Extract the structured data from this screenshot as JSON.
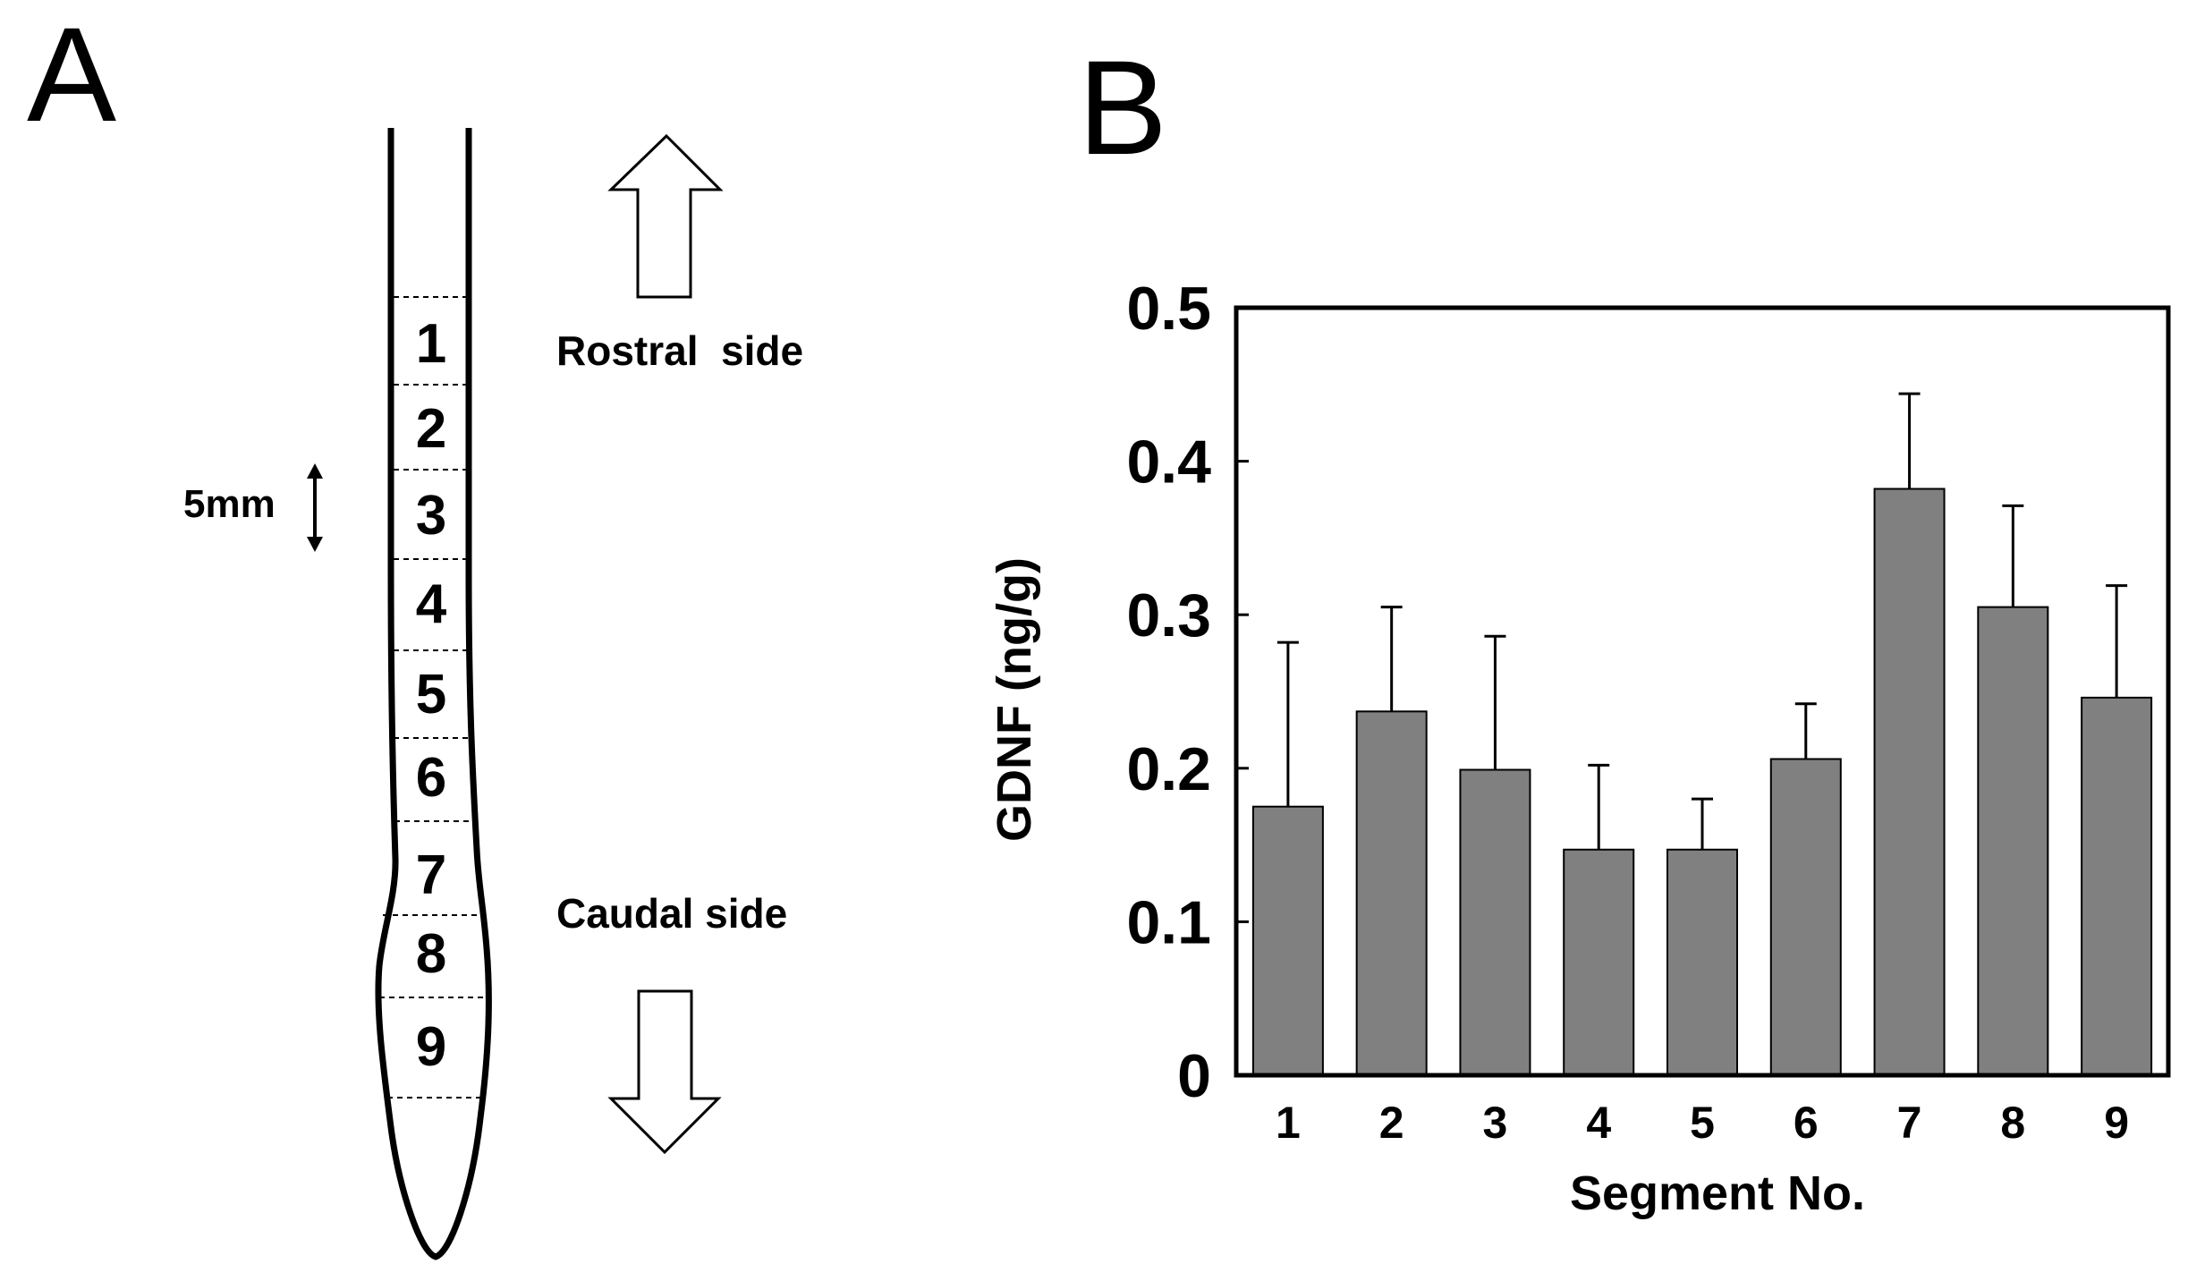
{
  "panels": {
    "a": {
      "label": "A",
      "segments": [
        "1",
        "2",
        "3",
        "4",
        "5",
        "6",
        "7",
        "8",
        "9"
      ],
      "rostral_label": "Rostral  side",
      "caudal_label": "Caudal side",
      "scale_label": "5mm"
    },
    "b": {
      "label": "B"
    }
  },
  "chart_data": {
    "type": "bar",
    "title": "",
    "xlabel": "Segment No.",
    "ylabel": "GDNF (ng/g)",
    "categories": [
      "1",
      "2",
      "3",
      "4",
      "5",
      "6",
      "7",
      "8",
      "9"
    ],
    "values": [
      0.175,
      0.237,
      0.199,
      0.147,
      0.147,
      0.206,
      0.382,
      0.305,
      0.246
    ],
    "errors": [
      0.107,
      0.068,
      0.087,
      0.055,
      0.033,
      0.036,
      0.062,
      0.066,
      0.073
    ],
    "ylim": [
      0,
      0.5
    ],
    "yticks": [
      0,
      0.1,
      0.2,
      0.3,
      0.4,
      0.5
    ],
    "ytick_labels": [
      "0",
      "0.1",
      "0.2",
      "0.3",
      "0.4",
      "0.5"
    ],
    "bar_color": "#808080",
    "grid": false,
    "legend": "none"
  }
}
